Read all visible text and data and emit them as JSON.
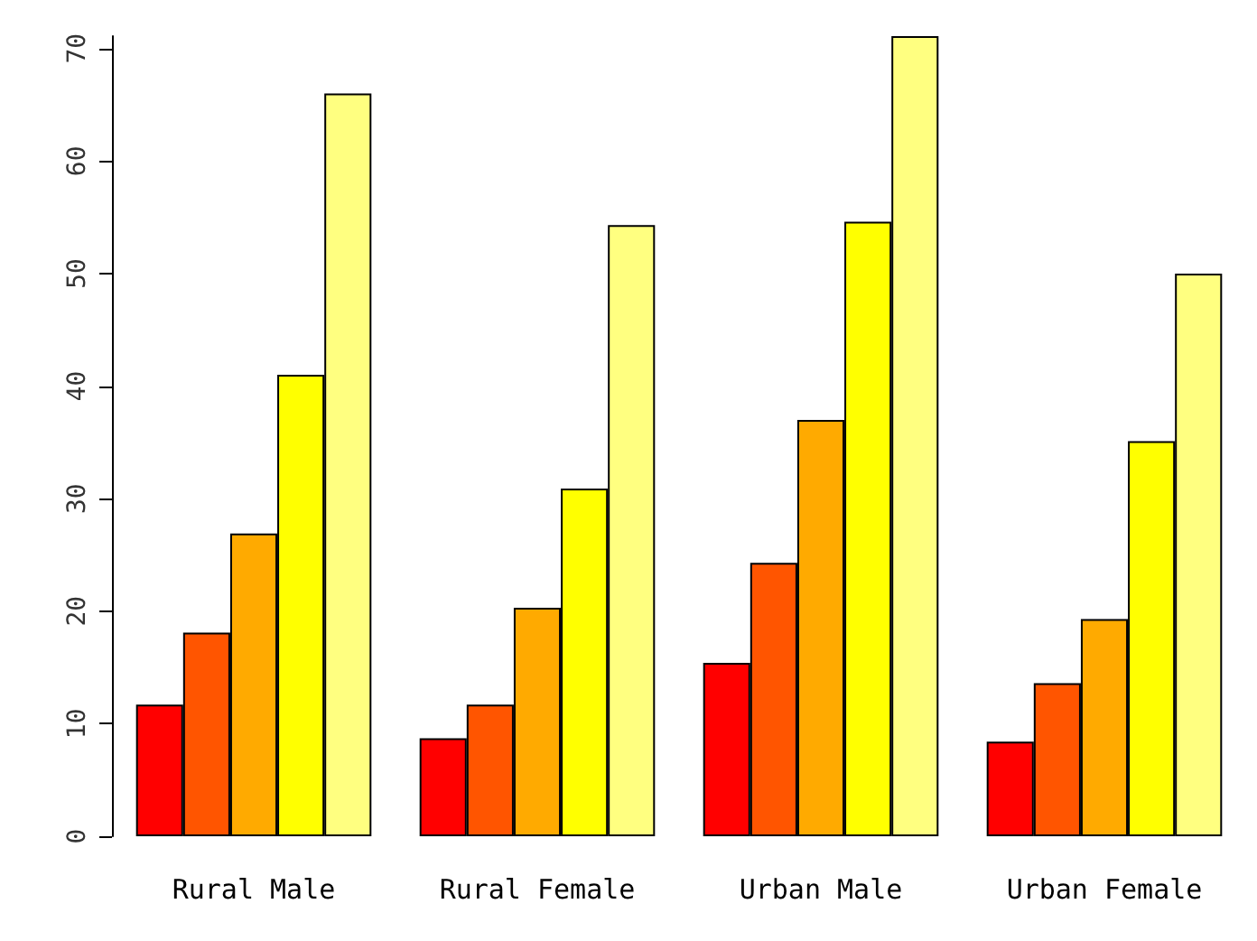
{
  "chart_data": {
    "type": "bar",
    "categories": [
      "Rural Male",
      "Rural Female",
      "Urban Male",
      "Urban Female"
    ],
    "series": [
      {
        "color": "#ff0000",
        "values": [
          11.7,
          8.7,
          15.4,
          8.4
        ]
      },
      {
        "color": "#ff5500",
        "values": [
          18.1,
          11.7,
          24.3,
          13.6
        ]
      },
      {
        "color": "#ffaa00",
        "values": [
          26.9,
          20.3,
          37.0,
          19.3
        ]
      },
      {
        "color": "#ffff00",
        "values": [
          41.0,
          30.9,
          54.6,
          35.1
        ]
      },
      {
        "color": "#ffff80",
        "values": [
          66.0,
          54.3,
          71.1,
          50.0
        ]
      }
    ],
    "ylim": [
      0,
      71.1
    ],
    "yticks": [
      0,
      10,
      20,
      30,
      40,
      50,
      60,
      70
    ],
    "grid": false
  }
}
